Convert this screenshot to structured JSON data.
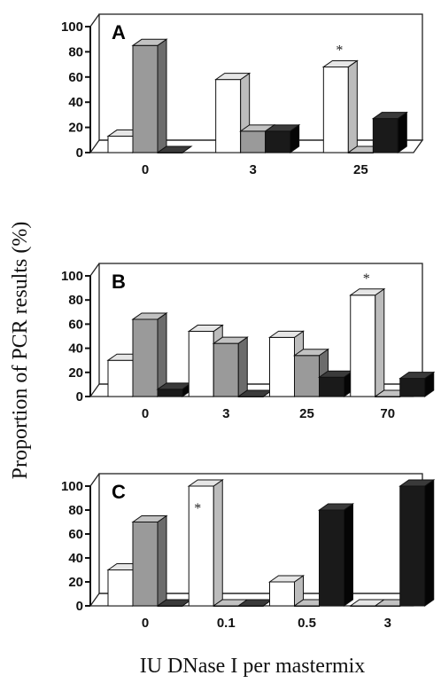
{
  "ylabel": "Proportion of PCR results (%)",
  "xlabel": "IU DNase I per mastermix",
  "colors": {
    "white_bar": "#ffffff",
    "gray_bar": "#9a9a9a",
    "black_bar": "#1a1a1a"
  },
  "chart_data": [
    {
      "type": "bar",
      "label": "A",
      "ylim": [
        0,
        100
      ],
      "yticks": [
        "0",
        "20",
        "40",
        "60",
        "80",
        "100"
      ],
      "categories": [
        "0",
        "3",
        "25"
      ],
      "series": [
        {
          "values": [
            13,
            58,
            68
          ]
        },
        {
          "values": [
            85,
            17,
            0
          ]
        },
        {
          "values": [
            0,
            17,
            27
          ]
        }
      ],
      "annotations": [
        {
          "text": "*",
          "category": 2,
          "series": 0
        }
      ]
    },
    {
      "type": "bar",
      "label": "B",
      "ylim": [
        0,
        100
      ],
      "yticks": [
        "0",
        "20",
        "40",
        "60",
        "80",
        "100"
      ],
      "categories": [
        "0",
        "3",
        "25",
        "70"
      ],
      "series": [
        {
          "values": [
            30,
            54,
            49,
            84
          ]
        },
        {
          "values": [
            64,
            44,
            34,
            0
          ]
        },
        {
          "values": [
            6,
            0,
            16,
            15
          ]
        }
      ],
      "annotations": [
        {
          "text": "*",
          "category": 3,
          "series": 0
        }
      ]
    },
    {
      "type": "bar",
      "label": "C",
      "ylim": [
        0,
        100
      ],
      "yticks": [
        "0",
        "20",
        "40",
        "60",
        "80",
        "100"
      ],
      "categories": [
        "0",
        "0.1",
        "0.5",
        "3"
      ],
      "series": [
        {
          "values": [
            30,
            100,
            20,
            0
          ]
        },
        {
          "values": [
            70,
            0,
            0,
            0
          ]
        },
        {
          "values": [
            0,
            0,
            80,
            100
          ]
        }
      ],
      "annotations": [
        {
          "text": "*",
          "category": 1,
          "series": 0
        }
      ]
    }
  ]
}
